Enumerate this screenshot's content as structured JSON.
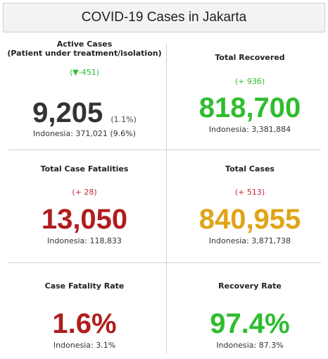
{
  "header": {
    "title": "COVID-19 Cases in Jakarta"
  },
  "cells": [
    {
      "label": "Active Cases",
      "sublabel": "(Patient under treatment/isolation)",
      "change": "(▼-451)",
      "value": "9,205",
      "value_note": "(1.1%)",
      "national": "Indonesia: 371,021 (9.6%)"
    },
    {
      "label": "Total Recovered",
      "change": "(+ 936)",
      "value": "818,700",
      "national": "Indonesia: 3,381,884"
    },
    {
      "label": "Total Case Fatalities",
      "change": "(+ 28)",
      "value": "13,050",
      "national": "Indonesia: 118,833"
    },
    {
      "label": "Total Cases",
      "change": "(+ 513)",
      "value": "840,955",
      "national": "Indonesia: 3,871,738"
    },
    {
      "label": "Case Fatality Rate",
      "value": "1.6%",
      "national": "Indonesia: 3.1%"
    },
    {
      "label": "Recovery Rate",
      "value": "97.4%",
      "national": "Indonesia: 87.3%"
    }
  ]
}
